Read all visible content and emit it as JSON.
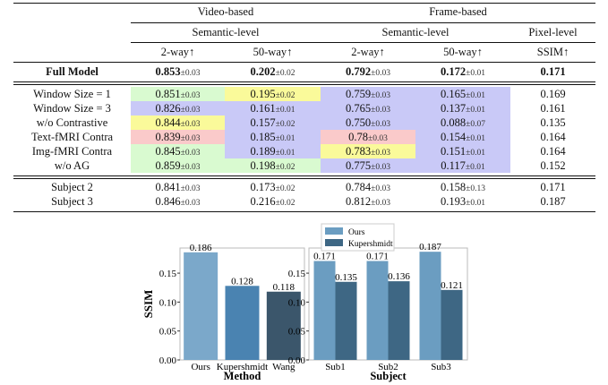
{
  "table": {
    "group_headers": [
      "Video-based",
      "Frame-based"
    ],
    "level_headers": [
      "Semantic-level",
      "Semantic-level",
      "Pixel-level"
    ],
    "columns": [
      "2-way↑",
      "50-way↑",
      "2-way↑",
      "50-way↑",
      "SSIM↑"
    ],
    "full_model": {
      "label": "Full Model",
      "values": [
        [
          "0.853",
          "±0.03"
        ],
        [
          "0.202",
          "±0.02"
        ],
        [
          "0.792",
          "±0.03"
        ],
        [
          "0.172",
          "±0.01"
        ],
        [
          "0.171",
          ""
        ]
      ]
    },
    "ablation_rows": [
      {
        "label": "Window Size = 1",
        "values": [
          [
            "0.851",
            "±0.03"
          ],
          [
            "0.195",
            "±0.02"
          ],
          [
            "0.759",
            "±0.03"
          ],
          [
            "0.165",
            "±0.01"
          ],
          [
            "0.169",
            ""
          ]
        ],
        "colors": [
          "#d9fad0",
          "#fafa9a",
          "#c9c9f7",
          "#c9c9f7",
          ""
        ]
      },
      {
        "label": "Window Size = 3",
        "values": [
          [
            "0.826",
            "±0.03"
          ],
          [
            "0.161",
            "±0.01"
          ],
          [
            "0.765",
            "±0.03"
          ],
          [
            "0.137",
            "±0.01"
          ],
          [
            "0.161",
            ""
          ]
        ],
        "colors": [
          "#c9c9f7",
          "#c9c9f7",
          "#c9c9f7",
          "#c9c9f7",
          ""
        ]
      },
      {
        "label": "w/o Contrastive",
        "values": [
          [
            "0.844",
            "±0.03"
          ],
          [
            "0.157",
            "±0.02"
          ],
          [
            "0.750",
            "±0.03"
          ],
          [
            "0.088",
            "±0.07"
          ],
          [
            "0.135",
            ""
          ]
        ],
        "colors": [
          "#fafa9a",
          "#c9c9f7",
          "#c9c9f7",
          "#c9c9f7",
          ""
        ]
      },
      {
        "label": "Text-fMRI Contra",
        "values": [
          [
            "0.839",
            "±0.03"
          ],
          [
            "0.185",
            "±0.01"
          ],
          [
            "0.78",
            "±0.03"
          ],
          [
            "0.154",
            "±0.01"
          ],
          [
            "0.164",
            ""
          ]
        ],
        "colors": [
          "#facaca",
          "#c9c9f7",
          "#facaca",
          "#c9c9f7",
          ""
        ]
      },
      {
        "label": "Img-fMRI Contra",
        "values": [
          [
            "0.845",
            "±0.03"
          ],
          [
            "0.189",
            "±0.01"
          ],
          [
            "0.783",
            "±0.03"
          ],
          [
            "0.151",
            "±0.01"
          ],
          [
            "0.164",
            ""
          ]
        ],
        "colors": [
          "#d9fad0",
          "#c9c9f7",
          "#fafa9a",
          "#c9c9f7",
          ""
        ]
      },
      {
        "label": "w/o AG",
        "values": [
          [
            "0.859",
            "±0.03"
          ],
          [
            "0.198",
            "±0.02"
          ],
          [
            "0.775",
            "±0.03"
          ],
          [
            "0.117",
            "±0.01"
          ],
          [
            "0.152",
            ""
          ]
        ],
        "colors": [
          "#d9fad0",
          "#d9fad0",
          "#c9c9f7",
          "#c9c9f7",
          ""
        ]
      }
    ],
    "subject_rows": [
      {
        "label": "Subject 2",
        "values": [
          [
            "0.841",
            "±0.03"
          ],
          [
            "0.173",
            "±0.02"
          ],
          [
            "0.784",
            "±0.03"
          ],
          [
            "0.158",
            "±0.13"
          ],
          [
            "0.171",
            ""
          ]
        ]
      },
      {
        "label": "Subject 3",
        "values": [
          [
            "0.846",
            "±0.03"
          ],
          [
            "0.216",
            "±0.02"
          ],
          [
            "0.812",
            "±0.03"
          ],
          [
            "0.193",
            "±0.01"
          ],
          [
            "0.187",
            ""
          ]
        ]
      }
    ]
  },
  "chart_data": [
    {
      "type": "bar",
      "categories": [
        "Ours",
        "Kupershmidt",
        "Wang"
      ],
      "values": [
        0.186,
        0.128,
        0.118
      ],
      "data_labels": [
        "0.186",
        "0.128",
        "0.118"
      ],
      "xlabel": "Method",
      "ylabel": "SSIM",
      "ylim": [
        0,
        0.195
      ],
      "yticks": [
        "0.00",
        "0.05",
        "0.10",
        "0.15"
      ],
      "colors": [
        "#7ba8ca",
        "#4a83b1",
        "#3b566b"
      ]
    },
    {
      "type": "bar",
      "categories": [
        "Sub1",
        "Sub2",
        "Sub3"
      ],
      "series": [
        {
          "name": "Ours",
          "values": [
            0.171,
            0.171,
            0.187
          ],
          "data_labels": [
            "0.171",
            "0.171",
            "0.187"
          ],
          "color": "#6b9dc1"
        },
        {
          "name": "Kupershmidt",
          "values": [
            0.135,
            0.136,
            0.121
          ],
          "data_labels": [
            "0.135",
            "0.136",
            "0.121"
          ],
          "color": "#3e6784"
        }
      ],
      "xlabel": "Subject",
      "ylim": [
        0,
        0.195
      ],
      "yticks": [
        "0.00",
        "0.05",
        "0.10",
        "0.15"
      ],
      "legend": "top-left"
    }
  ]
}
